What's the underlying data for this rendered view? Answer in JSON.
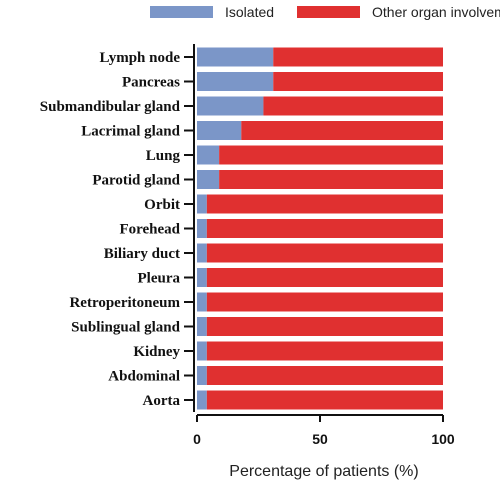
{
  "chart_data": {
    "type": "bar",
    "orientation": "horizontal",
    "stacked": true,
    "categories": [
      "Lymph node",
      "Pancreas",
      "Submandibular gland",
      "Lacrimal gland",
      "Lung",
      "Parotid gland",
      "Orbit",
      "Forehead",
      "Biliary duct",
      "Pleura",
      "Retroperitoneum",
      "Sublingual gland",
      "Kidney",
      "Abdominal",
      "Aorta"
    ],
    "series": [
      {
        "name": "Isolated",
        "color": "#7b96c8",
        "values": [
          31,
          31,
          27,
          18,
          9,
          9,
          4,
          4,
          4,
          4,
          4,
          4,
          4,
          4,
          4
        ]
      },
      {
        "name": "Other organ involvement",
        "color": "#e03030",
        "values": [
          69,
          69,
          73,
          82,
          91,
          91,
          96,
          96,
          96,
          96,
          96,
          96,
          96,
          96,
          96
        ]
      }
    ],
    "xlabel": "Percentage of patients (%)",
    "ylabel": "",
    "xlim": [
      0,
      100
    ],
    "xticks": [
      "0",
      "50",
      "100"
    ],
    "legend_position": "top",
    "grid": false
  }
}
